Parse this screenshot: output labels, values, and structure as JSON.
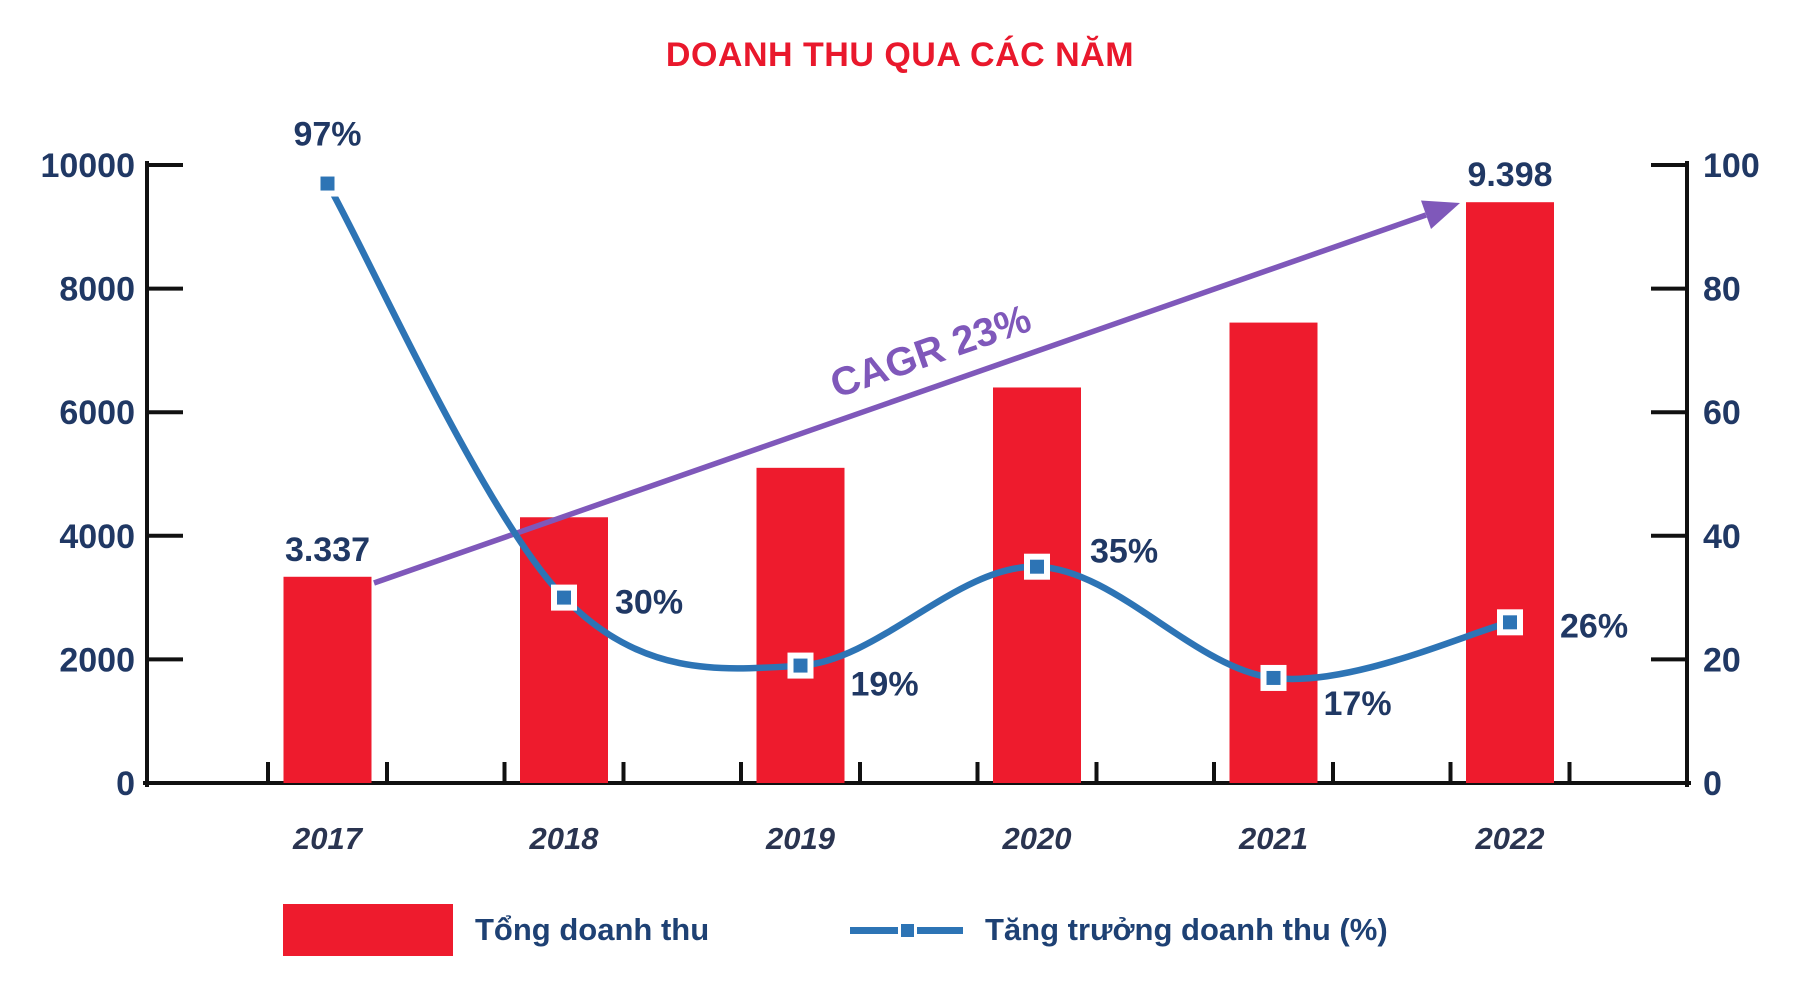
{
  "title": {
    "text": "DOANH THU QUA CÁC NĂM",
    "color": "#e9182c"
  },
  "chart_data": {
    "type": "combo",
    "title": "DOANH THU QUA CÁC NĂM",
    "categories": [
      "2017",
      "2018",
      "2019",
      "2020",
      "2021",
      "2022"
    ],
    "series": [
      {
        "name": "Tổng doanh thu",
        "type": "bar",
        "axis": "left",
        "color": "#ee1b2d",
        "values": [
          3337,
          4300,
          5100,
          6400,
          7450,
          9398
        ],
        "value_labels": [
          "3.337",
          null,
          null,
          null,
          null,
          "9.398"
        ]
      },
      {
        "name": "Tăng trưởng doanh thu (%)",
        "type": "line",
        "axis": "right",
        "color": "#2d74b5",
        "values": [
          97,
          30,
          19,
          35,
          17,
          26
        ],
        "point_labels": [
          "97%",
          "30%",
          "19%",
          "35%",
          "17%",
          "26%"
        ]
      }
    ],
    "left_axis": {
      "min": 0,
      "max": 10000,
      "ticks": [
        "0",
        "2000",
        "4000",
        "6000",
        "8000",
        "10000"
      ]
    },
    "right_axis": {
      "min": 0,
      "max": 100,
      "ticks": [
        "0",
        "20",
        "40",
        "60",
        "80",
        "100"
      ]
    },
    "annotation": {
      "text": "CAGR 23%",
      "color": "#7f58ba"
    },
    "grid": false,
    "legend_position": "bottom",
    "text_color": "#203864",
    "axis_color": "#111111"
  },
  "legend": {
    "revenue_label": "Tổng doanh thu",
    "growth_label": "Tăng trưởng doanh thu (%)"
  }
}
